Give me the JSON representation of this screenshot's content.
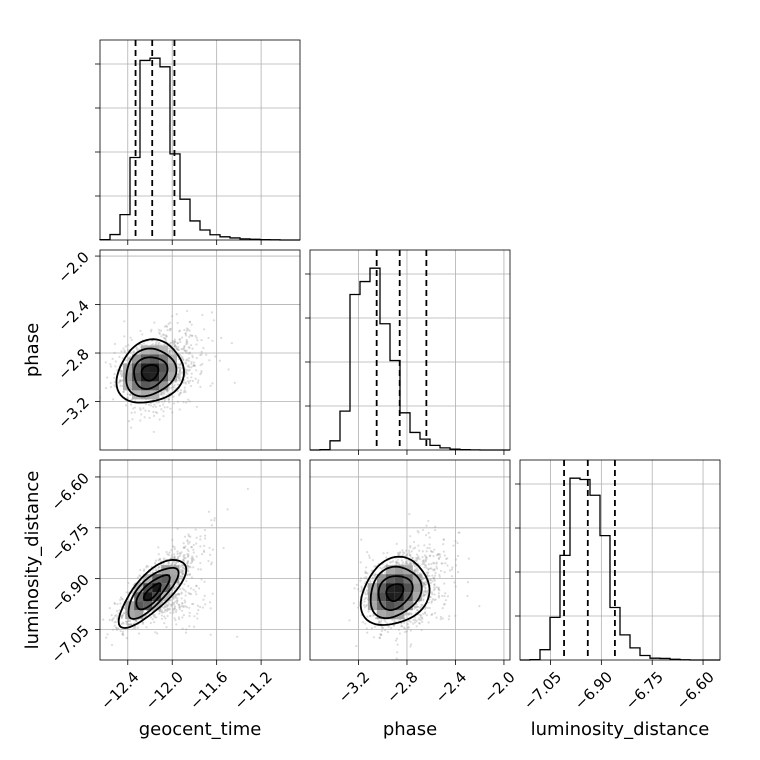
{
  "chart_data": {
    "type": "corner",
    "parameters": [
      "geocent_time",
      "phase",
      "luminosity_distance"
    ],
    "axes": {
      "geocent_time": {
        "range": [
          -12.65,
          -10.85
        ],
        "ticks": [
          -12.4,
          -12.0,
          -11.6,
          -11.2
        ],
        "tick_labels": [
          "−12.4",
          "−12.0",
          "−11.6",
          "−11.2"
        ]
      },
      "phase": {
        "range": [
          -3.6,
          -1.95
        ],
        "ticks": [
          -3.2,
          -2.8,
          -2.4,
          -2.0
        ],
        "tick_labels": [
          "−3.2",
          "−2.8",
          "−2.4",
          "−2.0"
        ]
      },
      "luminosity_distance": {
        "range": [
          -7.14,
          -6.55
        ],
        "ticks": [
          -7.05,
          -6.9,
          -6.75,
          -6.6
        ],
        "tick_labels": [
          "−7.05",
          "−6.90",
          "−6.75",
          "−6.60"
        ]
      }
    },
    "grid": true,
    "histograms": {
      "geocent_time": {
        "bin_start": -12.65,
        "bin_width": 0.09,
        "counts": [
          8,
          120,
          560,
          1820,
          3960,
          4010,
          3820,
          1900,
          900,
          420,
          220,
          115,
          70,
          45,
          25,
          15,
          8,
          4,
          0,
          0
        ],
        "quantiles": [
          -12.33,
          -12.18,
          -11.98
        ]
      },
      "phase": {
        "bin_start": -3.6,
        "bin_width": 0.0825,
        "counts": [
          0,
          8,
          220,
          930,
          3720,
          4030,
          4350,
          3020,
          2140,
          890,
          420,
          260,
          110,
          50,
          20,
          8,
          3,
          0,
          0,
          0
        ],
        "quantiles": [
          -3.05,
          -2.86,
          -2.64
        ]
      },
      "luminosity_distance": {
        "bin_start": -7.14,
        "bin_width": 0.0295,
        "counts": [
          0,
          8,
          230,
          950,
          2330,
          4050,
          4020,
          3670,
          2770,
          1170,
          560,
          270,
          100,
          40,
          35,
          15,
          5,
          0,
          0,
          0
        ],
        "quantiles": [
          -7.01,
          -6.94,
          -6.86
        ]
      }
    },
    "pair_2d": [
      {
        "x": "geocent_time",
        "y": "phase",
        "mean": [
          -12.2,
          -2.96
        ],
        "sd": [
          0.15,
          0.13
        ],
        "rho": 0.15,
        "levels_sigma": [
          0.5,
          1,
          1.5,
          2
        ]
      },
      {
        "x": "geocent_time",
        "y": "luminosity_distance",
        "mean": [
          -12.18,
          -6.94
        ],
        "sd": [
          0.15,
          0.05
        ],
        "rho": 0.75,
        "levels_sigma": [
          0.5,
          1,
          1.5,
          2
        ]
      },
      {
        "x": "phase",
        "y": "luminosity_distance",
        "mean": [
          -2.9,
          -6.94
        ],
        "sd": [
          0.14,
          0.05
        ],
        "rho": 0.2,
        "levels_sigma": [
          0.5,
          1,
          1.5,
          2
        ]
      }
    ],
    "xlabels": [
      "geocent_time",
      "phase",
      "luminosity_distance"
    ],
    "ylabels": [
      "phase",
      "luminosity_distance"
    ]
  }
}
